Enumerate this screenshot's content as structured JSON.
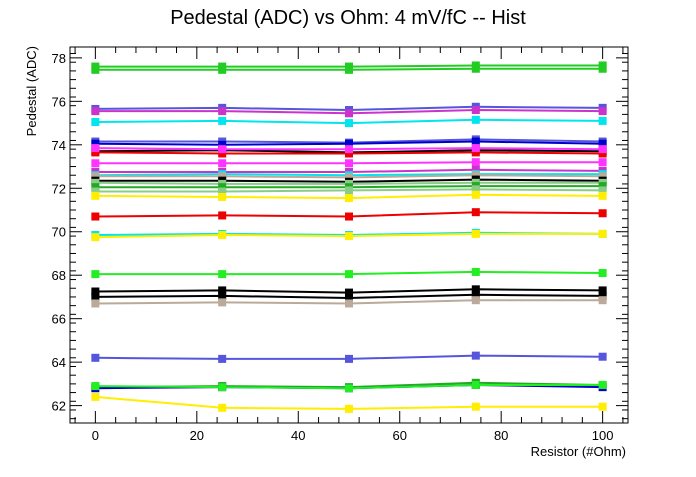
{
  "chart_data": {
    "type": "line",
    "title": "Pedestal (ADC) vs Ohm: 4 mV/fC -- Hist",
    "xlabel": "Resistor (#Ohm)",
    "ylabel": "Pedestal (ADC)",
    "xlim": [
      -5,
      105
    ],
    "ylim": [
      61.2,
      78.5
    ],
    "xticks": [
      0,
      20,
      40,
      60,
      80,
      100
    ],
    "yticks": [
      62,
      64,
      66,
      68,
      70,
      72,
      74,
      76,
      78
    ],
    "grid": false,
    "legend": "none",
    "x": [
      0,
      25,
      50,
      75,
      100
    ],
    "series": [
      {
        "color": "#22cc22",
        "values": [
          77.6,
          77.6,
          77.6,
          77.65,
          77.65
        ]
      },
      {
        "color": "#22cc22",
        "values": [
          77.45,
          77.45,
          77.45,
          77.5,
          77.5
        ]
      },
      {
        "color": "#5555dd",
        "values": [
          75.65,
          75.7,
          75.6,
          75.75,
          75.7
        ]
      },
      {
        "color": "#cc33cc",
        "values": [
          75.55,
          75.55,
          75.45,
          75.6,
          75.55
        ]
      },
      {
        "color": "#00e5ee",
        "values": [
          75.05,
          75.1,
          75.0,
          75.15,
          75.1
        ]
      },
      {
        "color": "#5555dd",
        "values": [
          74.15,
          74.15,
          74.1,
          74.25,
          74.15
        ]
      },
      {
        "color": "#0000cc",
        "values": [
          74.05,
          74.0,
          74.05,
          74.15,
          74.05
        ]
      },
      {
        "color": "#000000",
        "values": [
          73.7,
          73.75,
          73.65,
          73.75,
          73.7
        ]
      },
      {
        "color": "#ee0000",
        "values": [
          73.65,
          73.6,
          73.6,
          73.65,
          73.6
        ]
      },
      {
        "color": "#ff33ff",
        "values": [
          73.85,
          73.8,
          73.8,
          73.85,
          73.8
        ]
      },
      {
        "color": "#ff33ff",
        "values": [
          73.15,
          73.15,
          73.15,
          73.2,
          73.2
        ]
      },
      {
        "color": "#cc33cc",
        "values": [
          72.75,
          72.75,
          72.75,
          72.85,
          72.8
        ]
      },
      {
        "color": "#00e5ee",
        "values": [
          72.6,
          72.65,
          72.6,
          72.65,
          72.65
        ]
      },
      {
        "color": "#bbaa99",
        "values": [
          72.55,
          72.55,
          72.5,
          72.6,
          72.55
        ]
      },
      {
        "color": "#000000",
        "values": [
          72.35,
          72.35,
          72.3,
          72.4,
          72.35
        ]
      },
      {
        "color": "#88cc88",
        "values": [
          72.25,
          72.2,
          72.2,
          72.25,
          72.25
        ]
      },
      {
        "color": "#22aa22",
        "values": [
          72.05,
          72.05,
          72.05,
          72.1,
          72.1
        ]
      },
      {
        "color": "#88cc88",
        "values": [
          71.85,
          71.85,
          71.9,
          71.95,
          71.9
        ]
      },
      {
        "color": "#ffee00",
        "values": [
          71.65,
          71.6,
          71.55,
          71.7,
          71.65
        ]
      },
      {
        "color": "#ee0000",
        "values": [
          70.7,
          70.75,
          70.7,
          70.9,
          70.85
        ]
      },
      {
        "color": "#00e5ee",
        "values": [
          69.85,
          69.9,
          69.85,
          69.95,
          69.9
        ]
      },
      {
        "color": "#ffee00",
        "values": [
          69.75,
          69.85,
          69.8,
          69.9,
          69.9
        ]
      },
      {
        "color": "#22ee22",
        "values": [
          68.05,
          68.05,
          68.05,
          68.15,
          68.1
        ]
      },
      {
        "color": "#000000",
        "values": [
          67.25,
          67.3,
          67.2,
          67.35,
          67.3
        ]
      },
      {
        "color": "#000000",
        "values": [
          67.0,
          67.05,
          66.95,
          67.1,
          67.05
        ]
      },
      {
        "color": "#bbaa99",
        "values": [
          66.7,
          66.75,
          66.7,
          66.85,
          66.85
        ]
      },
      {
        "color": "#5555dd",
        "values": [
          64.2,
          64.15,
          64.15,
          64.3,
          64.25
        ]
      },
      {
        "color": "#22aa22",
        "values": [
          62.85,
          62.9,
          62.85,
          63.05,
          62.95
        ]
      },
      {
        "color": "#0000cc",
        "values": [
          62.8,
          62.85,
          62.8,
          62.95,
          62.85
        ]
      },
      {
        "color": "#22ee22",
        "values": [
          62.9,
          62.85,
          62.8,
          62.95,
          62.95
        ]
      },
      {
        "color": "#ffee00",
        "values": [
          62.4,
          61.9,
          61.85,
          61.95,
          61.95
        ]
      }
    ]
  }
}
